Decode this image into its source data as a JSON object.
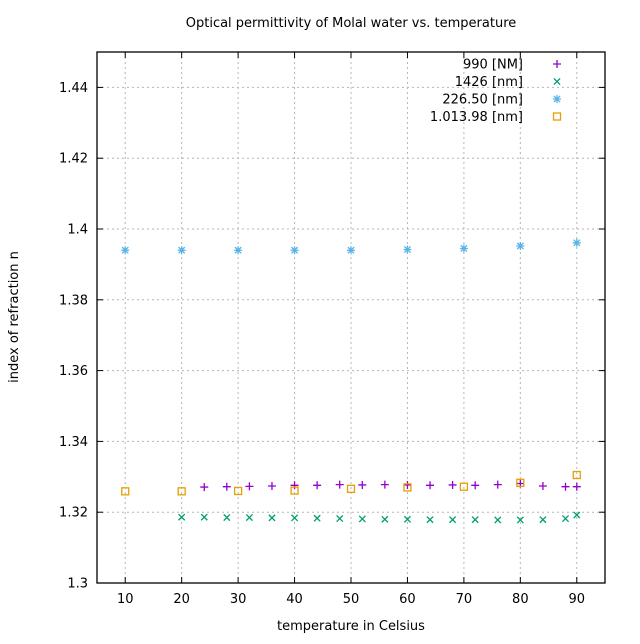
{
  "chart_data": {
    "type": "scatter",
    "title": "Optical permittivity of Molal water vs. temperature",
    "xlabel": "temperature in Celsius",
    "ylabel": "index of refraction n",
    "xlim": [
      5,
      95
    ],
    "ylim": [
      1.3,
      1.45
    ],
    "grid": true,
    "legend_position": "top-right-inside",
    "x_ticks": {
      "values": [
        10,
        20,
        30,
        40,
        50,
        60,
        70,
        80,
        90
      ],
      "labels": [
        "10",
        "20",
        "30",
        "40",
        "50",
        "60",
        "70",
        "80",
        "90"
      ]
    },
    "y_ticks": {
      "values": [
        1.3,
        1.32,
        1.34,
        1.36,
        1.38,
        1.4,
        1.42,
        1.44
      ],
      "labels": [
        "1.3",
        "1.32",
        "1.34",
        "1.36",
        "1.38",
        "1.4",
        "1.42",
        "1.44"
      ]
    },
    "series": [
      {
        "name": "990 [NM]",
        "marker": "plus",
        "color": "#9400d3",
        "x": [
          24,
          28,
          32,
          36,
          40,
          44,
          48,
          52,
          56,
          60,
          64,
          68,
          72,
          76,
          80,
          84,
          88,
          90
        ],
        "y": [
          1.3271,
          1.3272,
          1.3273,
          1.3274,
          1.3276,
          1.3276,
          1.3278,
          1.3277,
          1.3278,
          1.3277,
          1.3276,
          1.3277,
          1.3276,
          1.3278,
          1.3281,
          1.3274,
          1.3272,
          1.3272
        ]
      },
      {
        "name": "1426 [nm]",
        "marker": "x-cross",
        "color": "#009e73",
        "x": [
          20,
          24,
          28,
          32,
          36,
          40,
          44,
          48,
          52,
          56,
          60,
          64,
          68,
          72,
          76,
          80,
          84,
          88,
          90
        ],
        "y": [
          1.3186,
          1.3186,
          1.3185,
          1.3185,
          1.3184,
          1.3184,
          1.3183,
          1.3182,
          1.3181,
          1.318,
          1.318,
          1.3179,
          1.3179,
          1.3179,
          1.3178,
          1.3178,
          1.3179,
          1.3182,
          1.3192
        ]
      },
      {
        "name": "226.50 [nm]",
        "marker": "asterisk",
        "color": "#56b4e9",
        "x": [
          10,
          20,
          30,
          40,
          50,
          60,
          70,
          80,
          90
        ],
        "y": [
          1.394,
          1.394,
          1.394,
          1.394,
          1.394,
          1.3942,
          1.3945,
          1.3952,
          1.3961
        ]
      },
      {
        "name": "1.013.98 [nm]",
        "marker": "open-square",
        "color": "#e69f00",
        "x": [
          10,
          20,
          30,
          40,
          50,
          60,
          70,
          80,
          90
        ],
        "y": [
          1.3259,
          1.3259,
          1.326,
          1.3261,
          1.3266,
          1.327,
          1.3272,
          1.3283,
          1.3305
        ]
      }
    ]
  }
}
